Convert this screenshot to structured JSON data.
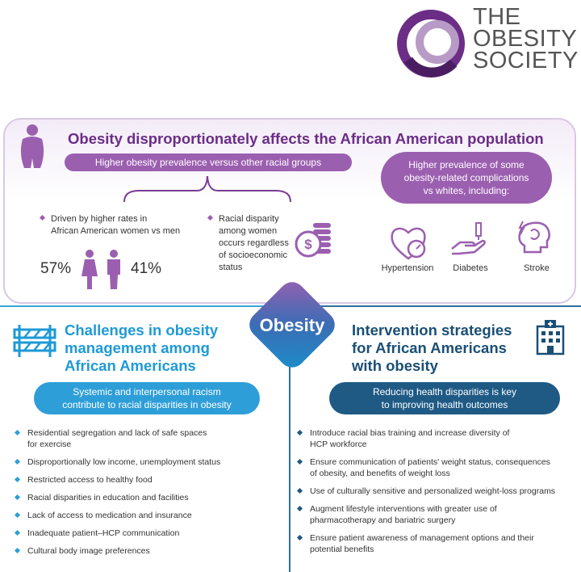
{
  "logo": {
    "line1": "THE",
    "line2": "OBESITY",
    "line3": "SOCIETY"
  },
  "top": {
    "title": "Obesity disproportionately affects the African American population",
    "prevalence_pill": "Higher obesity prevalence versus other racial groups",
    "complications_pill": [
      "Higher prevalence of some",
      "obesity-related complications",
      "vs whites, including:"
    ],
    "bullet_gender": [
      "Driven by higher rates in",
      "African American women vs men"
    ],
    "bullet_socio": [
      "Racial disparity",
      "among women",
      "occurs regardless",
      "of socioeconomic",
      "status"
    ],
    "women_pct": "57%",
    "men_pct": "41%",
    "complications": [
      {
        "label": "Hypertension",
        "icon": "heart-gauge-icon"
      },
      {
        "label": "Diabetes",
        "icon": "insulin-hand-icon"
      },
      {
        "label": "Stroke",
        "icon": "brain-lightning-icon"
      }
    ]
  },
  "center": {
    "label": "Obesity"
  },
  "challenges": {
    "title": [
      "Challenges in obesity",
      "management among",
      "African Americans"
    ],
    "pill": [
      "Systemic and interpersonal racism",
      "contribute to racial disparities in obesity"
    ],
    "items": [
      [
        "Residential segregation and lack of safe spaces",
        "for exercise"
      ],
      [
        "Disproportionally low income, unemployment status"
      ],
      [
        "Restricted access to healthy food"
      ],
      [
        "Racial disparities in education and facilities"
      ],
      [
        "Lack of access to medication and insurance"
      ],
      [
        "Inadequate patient–HCP communication"
      ],
      [
        "Cultural body image preferences"
      ]
    ]
  },
  "interventions": {
    "title": [
      "Intervention strategies",
      "for African Americans",
      "with obesity"
    ],
    "pill": [
      "Reducing health disparities is key",
      "to improving health outcomes"
    ],
    "items": [
      [
        "Introduce racial bias training and increase diversity of",
        "HCP workforce"
      ],
      [
        "Ensure communication of patients' weight status, consequences",
        "of obesity, and benefits of weight loss"
      ],
      [
        "Use of culturally sensitive and personalized weight-loss programs"
      ],
      [
        "Augment lifestyle interventions with greater use of",
        "pharmacotherapy and bariatric surgery"
      ],
      [
        "Ensure patient awareness of management options and their",
        "potential benefits"
      ]
    ]
  },
  "colors": {
    "purple": "#6b2d86",
    "light_purple": "#9b5fb0",
    "blue": "#2e9ed8",
    "navy": "#1f5a85"
  }
}
